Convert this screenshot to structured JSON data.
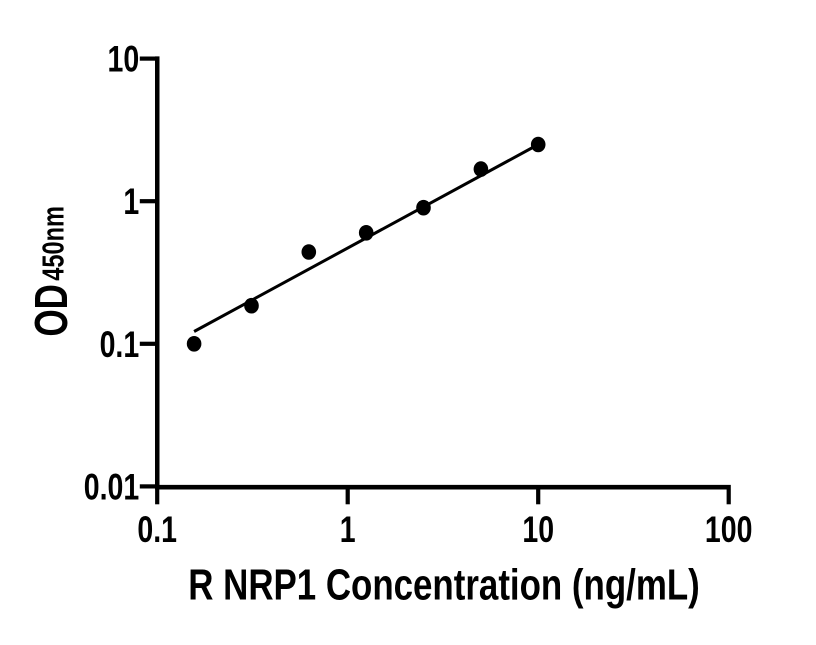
{
  "chart_data": {
    "type": "scatter",
    "title": "",
    "xlabel": "R NRP1 Concentration (ng/mL)",
    "ylabel_main": "OD",
    "ylabel_sub": "450nm",
    "x_scale": "log",
    "y_scale": "log",
    "xlim": [
      0.1,
      100
    ],
    "ylim": [
      0.01,
      10
    ],
    "grid": false,
    "legend": "none",
    "x_ticks": [
      {
        "value": 0.1,
        "label": "0.1"
      },
      {
        "value": 1,
        "label": "1"
      },
      {
        "value": 10,
        "label": "10"
      },
      {
        "value": 100,
        "label": "100"
      }
    ],
    "y_ticks": [
      {
        "value": 0.01,
        "label": "0.01"
      },
      {
        "value": 0.1,
        "label": "0.1"
      },
      {
        "value": 1,
        "label": "1"
      },
      {
        "value": 10,
        "label": "10"
      }
    ],
    "series": [
      {
        "name": "standard-curve-points",
        "type": "scatter",
        "marker": "filled-circle",
        "x": [
          0.15625,
          0.3125,
          0.625,
          1.25,
          2.5,
          5,
          10
        ],
        "y": [
          0.1,
          0.185,
          0.44,
          0.6,
          0.9,
          1.68,
          2.5
        ]
      },
      {
        "name": "fit-line",
        "type": "line",
        "x": [
          0.15625,
          10
        ],
        "y": [
          0.122,
          2.5
        ]
      }
    ],
    "colors": {
      "marker": "#000000",
      "line": "#000000",
      "axis": "#000000",
      "text": "#000000",
      "background": "#ffffff"
    }
  }
}
